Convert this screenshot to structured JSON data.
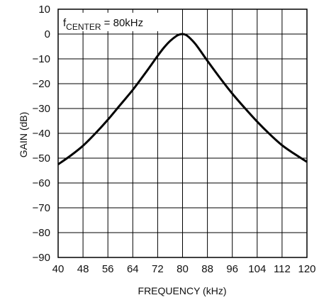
{
  "chart_data": {
    "type": "line",
    "title": "",
    "xlabel": "FREQUENCY (kHz)",
    "ylabel": "GAIN (dB)",
    "xlim": [
      40,
      120
    ],
    "ylim": [
      -90,
      10
    ],
    "x_ticks": [
      40,
      48,
      56,
      64,
      72,
      80,
      88,
      96,
      104,
      112,
      120
    ],
    "y_ticks": [
      10,
      0,
      -10,
      -20,
      -30,
      -40,
      -50,
      -60,
      -70,
      -80,
      -90
    ],
    "x_tick_labels": [
      "40",
      "48",
      "56",
      "64",
      "72",
      "80",
      "88",
      "96",
      "104",
      "112",
      "120"
    ],
    "y_tick_labels": [
      "10",
      "0",
      "−10",
      "−20",
      "−30",
      "−40",
      "−50",
      "−60",
      "−70",
      "−80",
      "−90"
    ],
    "grid": true,
    "annotation": {
      "prefix": "f",
      "subscript": "CENTER",
      "suffix": " = 80kHz"
    },
    "series": [
      {
        "x": [
          40,
          44,
          48,
          52,
          56,
          60,
          64,
          68,
          72,
          74,
          76,
          78,
          79,
          80,
          81,
          82,
          84,
          86,
          88,
          92,
          96,
          100,
          104,
          108,
          112,
          116,
          120
        ],
        "y": [
          -52.5,
          -49,
          -45,
          -40,
          -34.5,
          -28.5,
          -22.5,
          -15.8,
          -8.8,
          -5.5,
          -2.8,
          -0.8,
          -0.2,
          0,
          -0.3,
          -1.2,
          -3.8,
          -7.2,
          -10.8,
          -17.6,
          -24.0,
          -29.8,
          -35.3,
          -40.3,
          -44.8,
          -48.3,
          -51.5
        ]
      }
    ],
    "colors": {
      "line": "#000000",
      "grid": "#000000",
      "background": "#ffffff"
    }
  }
}
